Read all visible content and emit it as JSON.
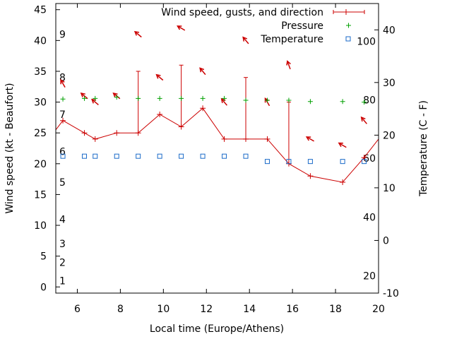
{
  "chart_data": {
    "type": "line",
    "xlabel": "Local time (Europe/Athens)",
    "ylabel_left": "Wind speed (kt - Beaufort)",
    "ylabel_right": "Temperature (C - F)",
    "xlim": [
      5,
      20
    ],
    "ylim_left": [
      -1,
      46
    ],
    "ylim_right": [
      -10,
      45
    ],
    "x_ticks": [
      6,
      8,
      10,
      12,
      14,
      16,
      18,
      20
    ],
    "y_ticks_left": [
      0,
      5,
      10,
      15,
      20,
      25,
      30,
      35,
      40,
      45
    ],
    "y_ticks_right": [
      -10,
      0,
      10,
      20,
      30,
      40
    ],
    "beaufort_labels": [
      {
        "label": "1",
        "value": 1
      },
      {
        "label": "2",
        "value": 4
      },
      {
        "label": "3",
        "value": 7
      },
      {
        "label": "4",
        "value": 11
      },
      {
        "label": "5",
        "value": 17
      },
      {
        "label": "6",
        "value": 22
      },
      {
        "label": "7",
        "value": 28
      },
      {
        "label": "8",
        "value": 34
      },
      {
        "label": "9",
        "value": 41
      }
    ],
    "fahrenheit_labels": [
      {
        "label": "20",
        "c": -6.7
      },
      {
        "label": "40",
        "c": 4.4
      },
      {
        "label": "60",
        "c": 15.6
      },
      {
        "label": "80",
        "c": 26.7
      },
      {
        "label": "100",
        "c": 37.8
      }
    ],
    "legend": {
      "wind": "Wind speed, gusts, and direction",
      "pressure": "Pressure",
      "temperature": "Temperature"
    },
    "colors": {
      "wind": "#cc0000",
      "pressure": "#00a000",
      "temperature": "#1a6ac8"
    },
    "wind": [
      {
        "x": 5.0,
        "y": 25.5
      },
      {
        "x": 5.33,
        "y": 27,
        "dir": 330
      },
      {
        "x": 6.33,
        "y": 25,
        "dir": 310
      },
      {
        "x": 6.83,
        "y": 24,
        "dir": 310
      },
      {
        "x": 7.83,
        "y": 25,
        "dir": 310
      },
      {
        "x": 8.83,
        "y": 25,
        "gust": 35,
        "dir": 310
      },
      {
        "x": 9.83,
        "y": 28,
        "dir": 310
      },
      {
        "x": 10.83,
        "y": 26,
        "gust": 36,
        "dir": 300
      },
      {
        "x": 11.83,
        "y": 29,
        "dir": 320
      },
      {
        "x": 12.83,
        "y": 24,
        "dir": 320
      },
      {
        "x": 13.83,
        "y": 24,
        "gust": 34,
        "dir": 320
      },
      {
        "x": 14.83,
        "y": 24,
        "dir": 330
      },
      {
        "x": 15.83,
        "y": 20,
        "gust": 30,
        "dir": 340
      },
      {
        "x": 16.83,
        "y": 18,
        "dir": 300
      },
      {
        "x": 18.33,
        "y": 17,
        "dir": 300
      },
      {
        "x": 19.33,
        "y": 21,
        "dir": 320
      },
      {
        "x": 20.0,
        "y": 24
      }
    ],
    "pressure_y_left": [
      {
        "x": 5.33,
        "y": 30.5
      },
      {
        "x": 6.33,
        "y": 30.6
      },
      {
        "x": 6.83,
        "y": 30.6
      },
      {
        "x": 7.83,
        "y": 30.8
      },
      {
        "x": 8.83,
        "y": 30.6
      },
      {
        "x": 9.83,
        "y": 30.6
      },
      {
        "x": 10.83,
        "y": 30.6
      },
      {
        "x": 11.83,
        "y": 30.6
      },
      {
        "x": 12.83,
        "y": 30.6
      },
      {
        "x": 13.83,
        "y": 30.3
      },
      {
        "x": 14.83,
        "y": 30.3
      },
      {
        "x": 15.83,
        "y": 30.3
      },
      {
        "x": 16.83,
        "y": 30.1
      },
      {
        "x": 18.33,
        "y": 30.1
      },
      {
        "x": 19.33,
        "y": 30.0
      }
    ],
    "temperature_c": [
      {
        "x": 5.33,
        "y": 16
      },
      {
        "x": 6.33,
        "y": 16
      },
      {
        "x": 6.83,
        "y": 16
      },
      {
        "x": 7.83,
        "y": 16
      },
      {
        "x": 8.83,
        "y": 16
      },
      {
        "x": 9.83,
        "y": 16
      },
      {
        "x": 10.83,
        "y": 16
      },
      {
        "x": 11.83,
        "y": 16
      },
      {
        "x": 12.83,
        "y": 16
      },
      {
        "x": 13.83,
        "y": 16
      },
      {
        "x": 14.83,
        "y": 15
      },
      {
        "x": 15.83,
        "y": 15
      },
      {
        "x": 16.83,
        "y": 15
      },
      {
        "x": 18.33,
        "y": 15
      },
      {
        "x": 19.33,
        "y": 15
      }
    ]
  }
}
